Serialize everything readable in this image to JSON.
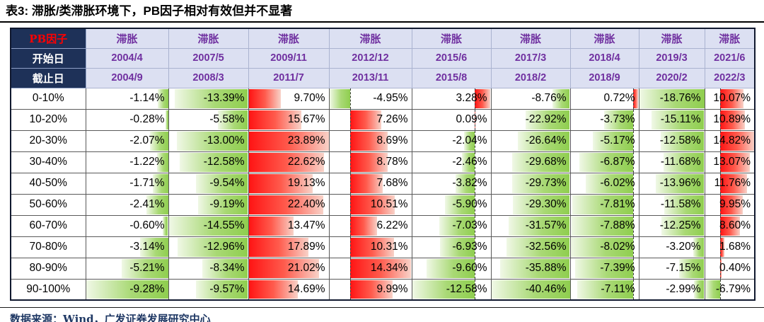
{
  "title": "表3:  滞胀/类滞胀环境下，PB因子相对有效但并不显著",
  "source": "数据来源：Wind，广发证券发展研究中心",
  "colors": {
    "header_bg": "#1E3158",
    "subheader_bg": "#DCE0F2",
    "header_accent_text": "#FF0000",
    "subheader_text": "#7030A0",
    "bar_negative": "#92D050",
    "bar_positive": "#FF1414",
    "source_text": "#1F3864"
  },
  "chart_data": {
    "type": "table",
    "title": "表3: 滞胀/类滞胀环境下，PB因子相对有效但并不显著",
    "corner_label": "PB因子",
    "start_row_label": "开始日",
    "end_row_label": "截止日",
    "value_format": "percent_2dp",
    "bar_style": "excel data bars: negative=green right-aligned, positive=red from per-column axis, dashed axis line in mixed-sign columns, per-column scaling",
    "row_labels": [
      "0-10%",
      "10-20%",
      "20-30%",
      "30-40%",
      "40-50%",
      "50-60%",
      "60-70%",
      "70-80%",
      "80-90%",
      "90-100%"
    ],
    "columns": [
      {
        "env": "滞胀",
        "start": "2004/4",
        "end": "2004/9",
        "values": [
          -1.14,
          -0.28,
          -2.07,
          -1.22,
          -1.71,
          -2.41,
          -0.6,
          -3.14,
          -5.21,
          -9.28
        ]
      },
      {
        "env": "滞胀",
        "start": "2007/5",
        "end": "2008/3",
        "values": [
          -13.39,
          -5.58,
          -13.0,
          -12.58,
          -9.54,
          -9.19,
          -14.55,
          -12.96,
          -8.34,
          -9.57
        ]
      },
      {
        "env": "滞胀",
        "start": "2009/11",
        "end": "2011/7",
        "values": [
          9.7,
          15.67,
          23.89,
          22.62,
          19.13,
          22.4,
          13.47,
          17.89,
          21.02,
          14.69
        ]
      },
      {
        "env": "滞胀",
        "start": "2012/12",
        "end": "2013/11",
        "values": [
          -4.95,
          7.26,
          8.69,
          8.78,
          7.68,
          10.51,
          6.22,
          10.31,
          14.34,
          9.99
        ]
      },
      {
        "env": "滞胀",
        "start": "2015/6",
        "end": "2015/8",
        "values": [
          3.28,
          0.09,
          -2.04,
          -2.46,
          -3.82,
          -5.9,
          -7.03,
          -6.93,
          -9.6,
          -12.58
        ]
      },
      {
        "env": "滞胀",
        "start": "2017/3",
        "end": "2018/2",
        "values": [
          -8.76,
          -22.92,
          -26.64,
          -29.68,
          -29.73,
          -29.3,
          -31.57,
          -32.56,
          -35.88,
          -40.46
        ]
      },
      {
        "env": "滞胀",
        "start": "2018/4",
        "end": "2018/9",
        "values": [
          0.72,
          -3.73,
          -5.17,
          -6.87,
          -6.02,
          -7.81,
          -7.88,
          -8.02,
          -7.39,
          -7.11
        ]
      },
      {
        "env": "滞胀",
        "start": "2019/3",
        "end": "2020/2",
        "values": [
          -18.76,
          -15.11,
          -12.58,
          -11.68,
          -13.96,
          -11.58,
          -12.25,
          -3.2,
          -7.15,
          -2.99
        ]
      },
      {
        "env": "滞胀",
        "start": "2021/6",
        "end": "2022/3",
        "values": [
          10.07,
          10.89,
          14.82,
          13.07,
          11.76,
          9.95,
          8.6,
          1.68,
          0.4,
          -6.79
        ]
      }
    ]
  }
}
